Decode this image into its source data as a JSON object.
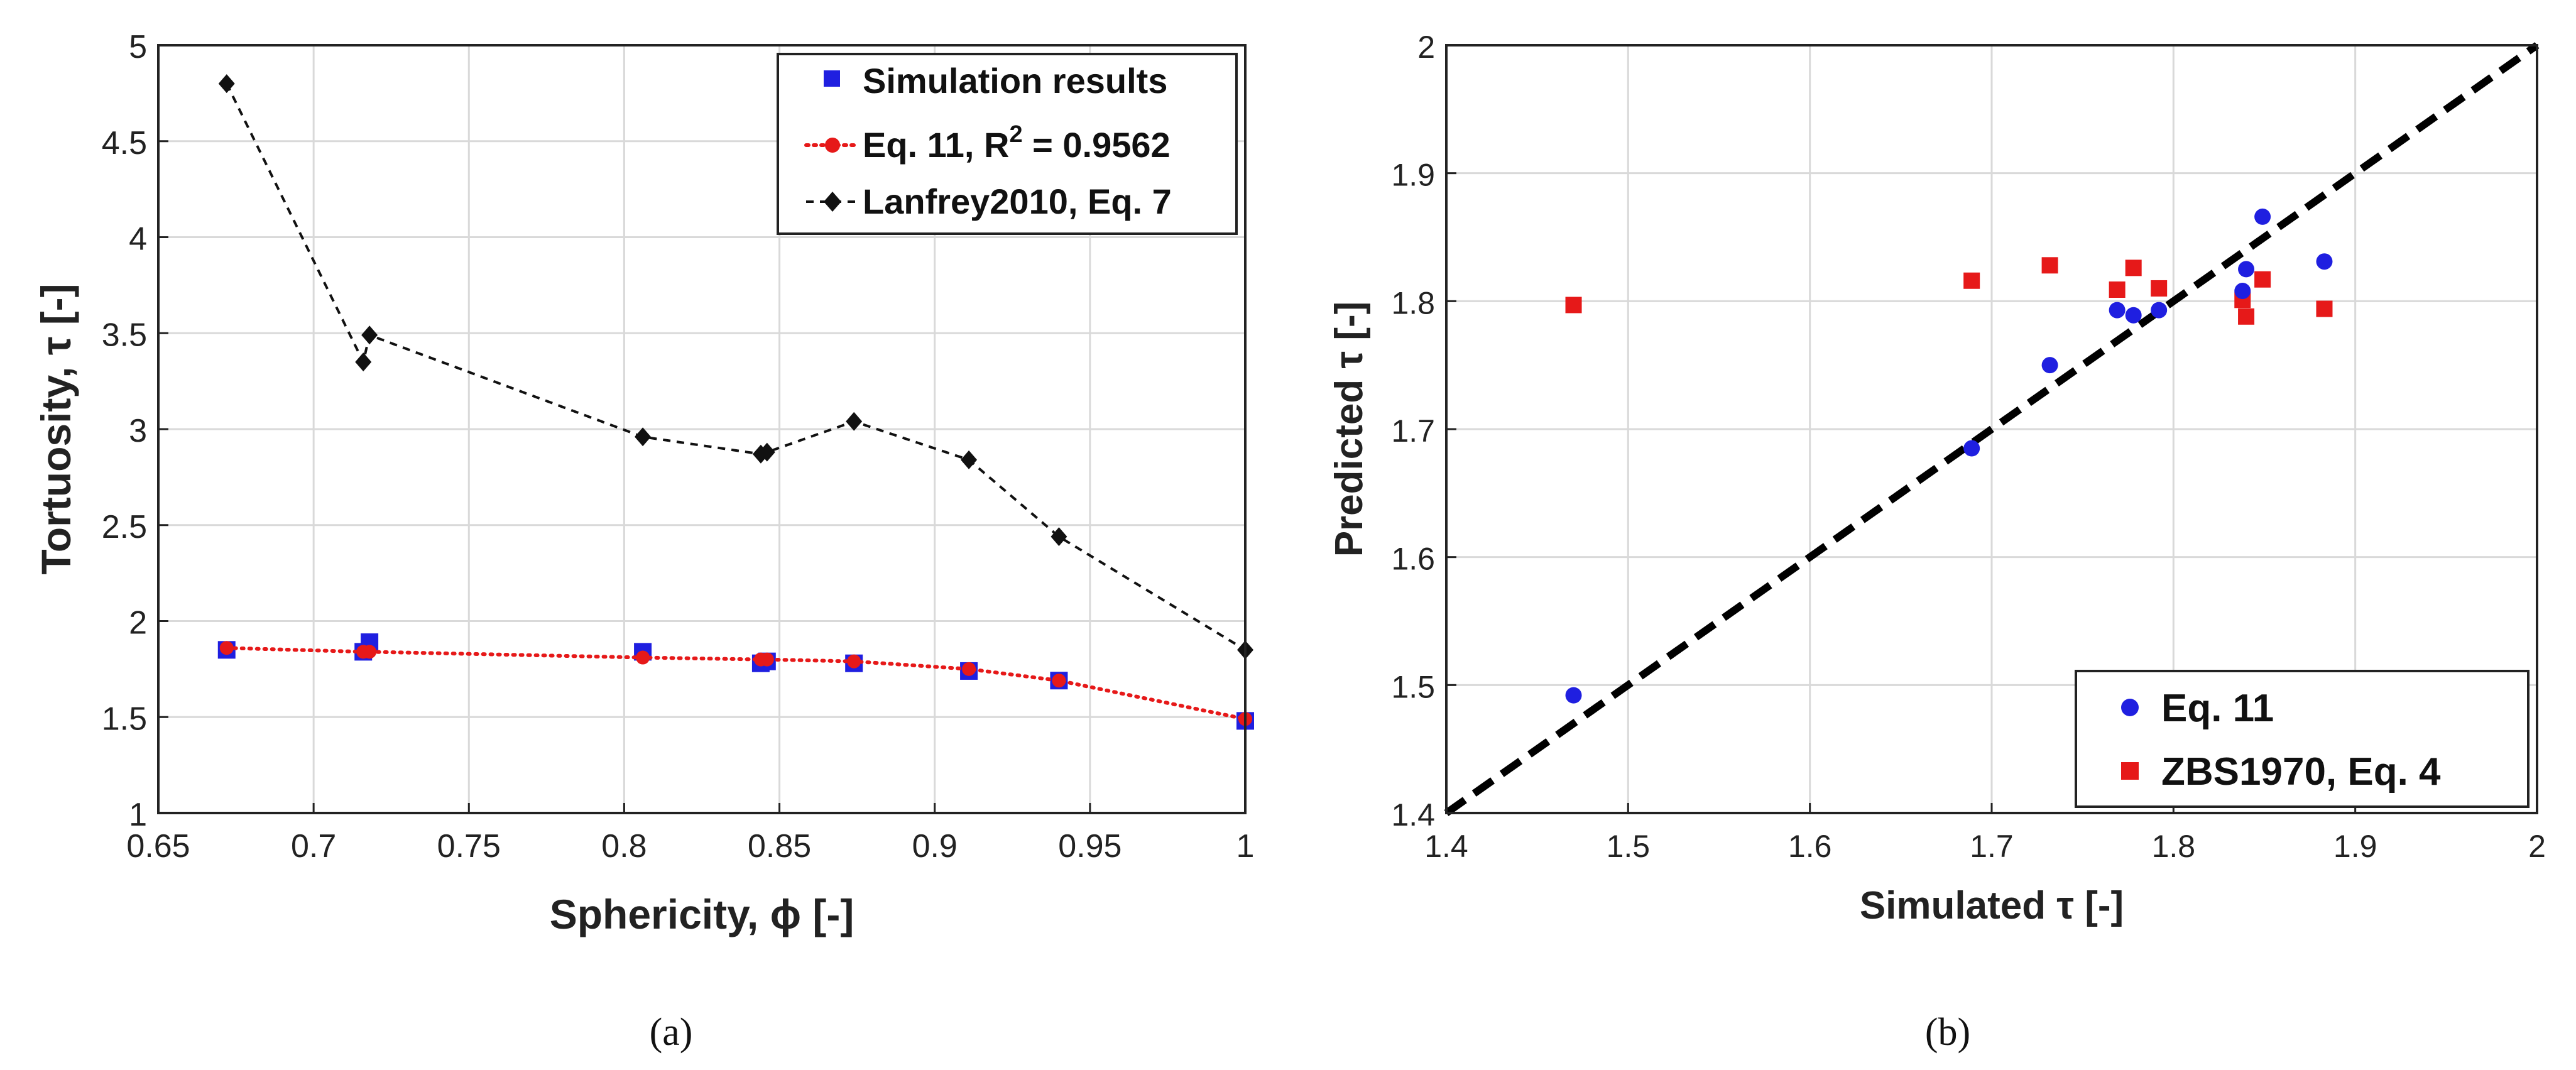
{
  "chart_data": [
    {
      "type": "scatter",
      "panel": "(a)",
      "xlabel": "Sphericity, ϕ [-]",
      "ylabel": "Tortuosity, τ [-]",
      "xlim": [
        0.65,
        1.0
      ],
      "ylim": [
        1,
        5
      ],
      "xticks": [
        "0.65",
        "0.7",
        "0.75",
        "0.8",
        "0.85",
        "0.9",
        "0.95",
        "1"
      ],
      "yticks": [
        "1",
        "1.5",
        "2",
        "2.5",
        "3",
        "3.5",
        "4",
        "4.5",
        "5"
      ],
      "grid": true,
      "legend": "top-right",
      "series": [
        {
          "name": "Simulation results",
          "color": "#1f1fe0",
          "marker": "square",
          "line": "none",
          "x": [
            0.672,
            0.716,
            0.718,
            0.806,
            0.844,
            0.846,
            0.874,
            0.911,
            0.94,
            1.0
          ],
          "y": [
            1.85,
            1.84,
            1.89,
            1.84,
            1.78,
            1.79,
            1.78,
            1.74,
            1.69,
            1.48
          ]
        },
        {
          "name": "Eq. 11, R",
          "name_sup": "2",
          "name_tail": " = 0.9562",
          "color": "#e61919",
          "marker": "circle",
          "line": "dotted",
          "x": [
            0.672,
            0.716,
            0.718,
            0.806,
            0.844,
            0.846,
            0.874,
            0.911,
            0.94,
            1.0
          ],
          "y": [
            1.86,
            1.84,
            1.84,
            1.81,
            1.8,
            1.8,
            1.79,
            1.75,
            1.69,
            1.49
          ]
        },
        {
          "name": "Lanfrey2010, Eq. 7",
          "color": "#111111",
          "marker": "diamond",
          "line": "dashed",
          "x": [
            0.672,
            0.716,
            0.718,
            0.806,
            0.844,
            0.846,
            0.874,
            0.911,
            0.94,
            1.0
          ],
          "y": [
            4.8,
            3.35,
            3.49,
            2.96,
            2.87,
            2.88,
            3.04,
            2.84,
            2.44,
            1.85
          ]
        }
      ]
    },
    {
      "type": "scatter",
      "panel": "(b)",
      "xlabel": "Simulated τ [-]",
      "ylabel": "Predicted τ [-]",
      "xlim": [
        1.4,
        2.0
      ],
      "ylim": [
        1.4,
        2.0
      ],
      "xticks": [
        "1.4",
        "1.5",
        "1.6",
        "1.7",
        "1.8",
        "1.9",
        "2"
      ],
      "yticks": [
        "1.4",
        "1.5",
        "1.6",
        "1.7",
        "1.8",
        "1.9",
        "2"
      ],
      "grid": true,
      "legend": "bottom-right",
      "reference_line": {
        "x": [
          1.4,
          2.0
        ],
        "y": [
          1.4,
          2.0
        ],
        "style": "dashed",
        "color": "#000000"
      },
      "series": [
        {
          "name": "Eq. 11",
          "color": "#1f1fe0",
          "marker": "circle",
          "x": [
            1.47,
            1.689,
            1.732,
            1.769,
            1.778,
            1.792,
            1.838,
            1.84,
            1.849,
            1.883
          ],
          "y": [
            1.492,
            1.685,
            1.75,
            1.793,
            1.789,
            1.793,
            1.808,
            1.825,
            1.866,
            1.831
          ]
        },
        {
          "name": "ZBS1970, Eq. 4",
          "color": "#e61919",
          "marker": "square",
          "x": [
            1.47,
            1.689,
            1.732,
            1.769,
            1.778,
            1.792,
            1.838,
            1.84,
            1.849,
            1.883
          ],
          "y": [
            1.797,
            1.816,
            1.828,
            1.809,
            1.826,
            1.81,
            1.801,
            1.788,
            1.817,
            1.794
          ]
        }
      ]
    }
  ]
}
